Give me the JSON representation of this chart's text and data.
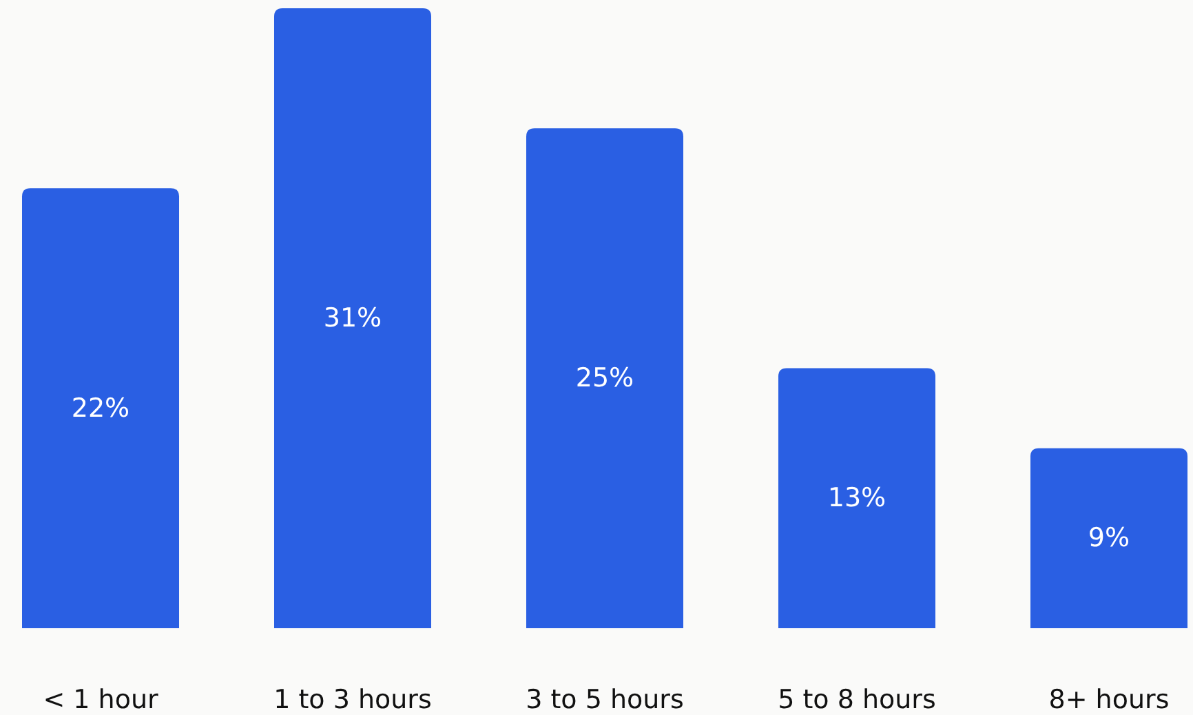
{
  "chart_data": {
    "type": "bar",
    "categories": [
      "< 1 hour",
      "1 to 3 hours",
      "3 to 5 hours",
      "5 to 8 hours",
      "8+ hours"
    ],
    "values": [
      22,
      31,
      25,
      13,
      9
    ],
    "value_labels": [
      "22%",
      "31%",
      "25%",
      "13%",
      "9%"
    ],
    "color": "#2a5fe3",
    "grid": false
  }
}
